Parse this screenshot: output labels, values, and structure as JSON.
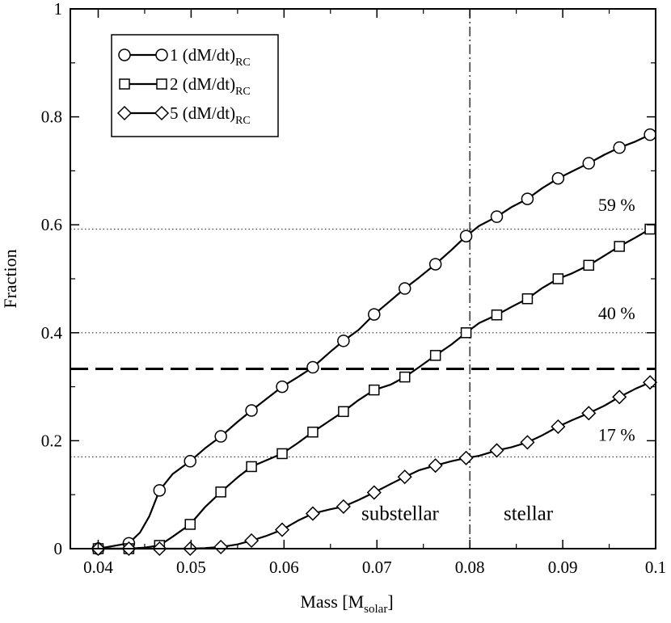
{
  "chart_data": {
    "type": "line",
    "title": "",
    "xlabel": "Mass [M",
    "xlabel_sub": "solar",
    "xlabel_close": "]",
    "ylabel": "Fraction",
    "xlim": [
      0.037,
      0.1
    ],
    "ylim": [
      0,
      1
    ],
    "x_ticks": [
      0.04,
      0.05,
      0.06,
      0.07,
      0.08,
      0.09,
      0.1
    ],
    "x_tick_labels": [
      "0.04",
      "0.05",
      "0.06",
      "0.07",
      "0.08",
      "0.09",
      "0.1"
    ],
    "y_ticks": [
      0,
      0.2,
      0.4,
      0.6,
      0.8,
      1
    ],
    "y_tick_labels": [
      "0",
      "0.2",
      "0.4",
      "0.6",
      "0.8",
      "1"
    ],
    "grid": false,
    "legend_position": "top-left",
    "series": [
      {
        "name": "1 (dM/dt)",
        "name_sub": "RC",
        "marker": "circle",
        "x": [
          0.04,
          0.0433,
          0.0466,
          0.0499,
          0.0532,
          0.0565,
          0.0598,
          0.0631,
          0.0664,
          0.0697,
          0.073,
          0.0763,
          0.0796,
          0.0829,
          0.0862,
          0.0895,
          0.0928,
          0.0961,
          0.0994
        ],
        "y": [
          0,
          0.01,
          0.108,
          0.162,
          0.208,
          0.256,
          0.3,
          0.336,
          0.385,
          0.434,
          0.482,
          0.527,
          0.579,
          0.615,
          0.648,
          0.686,
          0.714,
          0.743,
          0.767
        ],
        "curve_x": [
          0.04,
          0.0433,
          0.0445,
          0.0455,
          0.0466,
          0.048,
          0.0499,
          0.0515,
          0.0532,
          0.055,
          0.0565,
          0.058,
          0.0598,
          0.0615,
          0.0631,
          0.065,
          0.0664,
          0.068,
          0.0697,
          0.0715,
          0.073,
          0.0745,
          0.0763,
          0.078,
          0.0796,
          0.081,
          0.0829,
          0.0845,
          0.0862,
          0.0878,
          0.0895,
          0.091,
          0.0928,
          0.0945,
          0.0961,
          0.0978,
          0.0994
        ],
        "curve_y": [
          0,
          0.01,
          0.03,
          0.06,
          0.108,
          0.138,
          0.162,
          0.186,
          0.208,
          0.235,
          0.256,
          0.276,
          0.3,
          0.318,
          0.336,
          0.365,
          0.385,
          0.405,
          0.434,
          0.46,
          0.482,
          0.502,
          0.527,
          0.553,
          0.579,
          0.598,
          0.615,
          0.633,
          0.648,
          0.668,
          0.686,
          0.699,
          0.714,
          0.73,
          0.743,
          0.754,
          0.767
        ]
      },
      {
        "name": "2 (dM/dt)",
        "name_sub": "RC",
        "marker": "square",
        "x": [
          0.04,
          0.0433,
          0.0466,
          0.0499,
          0.0532,
          0.0565,
          0.0598,
          0.0631,
          0.0664,
          0.0697,
          0.073,
          0.0763,
          0.0796,
          0.0829,
          0.0862,
          0.0895,
          0.0928,
          0.0961,
          0.0994
        ],
        "y": [
          0,
          0,
          0.006,
          0.045,
          0.105,
          0.152,
          0.176,
          0.216,
          0.254,
          0.294,
          0.318,
          0.358,
          0.4,
          0.433,
          0.463,
          0.5,
          0.525,
          0.56,
          0.592
        ],
        "curve_x": [
          0.04,
          0.0433,
          0.045,
          0.0466,
          0.048,
          0.0499,
          0.0515,
          0.0532,
          0.055,
          0.0565,
          0.058,
          0.0598,
          0.0615,
          0.0631,
          0.065,
          0.0664,
          0.068,
          0.0697,
          0.0715,
          0.073,
          0.0745,
          0.0763,
          0.078,
          0.0796,
          0.081,
          0.0829,
          0.0845,
          0.0862,
          0.0878,
          0.0895,
          0.091,
          0.0928,
          0.0945,
          0.0961,
          0.0978,
          0.0994
        ],
        "curve_y": [
          0,
          0,
          0.002,
          0.006,
          0.022,
          0.045,
          0.077,
          0.105,
          0.132,
          0.152,
          0.163,
          0.176,
          0.196,
          0.216,
          0.238,
          0.254,
          0.275,
          0.294,
          0.304,
          0.318,
          0.336,
          0.358,
          0.378,
          0.4,
          0.418,
          0.433,
          0.448,
          0.463,
          0.483,
          0.5,
          0.51,
          0.525,
          0.543,
          0.56,
          0.576,
          0.592
        ]
      },
      {
        "name": "5 (dM/dt)",
        "name_sub": "RC",
        "marker": "diamond",
        "x": [
          0.04,
          0.0433,
          0.0466,
          0.0499,
          0.0532,
          0.0565,
          0.0598,
          0.0631,
          0.0664,
          0.0697,
          0.073,
          0.0763,
          0.0796,
          0.0829,
          0.0862,
          0.0895,
          0.0928,
          0.0961,
          0.0994
        ],
        "y": [
          0,
          0,
          0,
          0,
          0.003,
          0.015,
          0.035,
          0.065,
          0.078,
          0.104,
          0.133,
          0.154,
          0.168,
          0.182,
          0.197,
          0.226,
          0.251,
          0.281,
          0.308
        ],
        "curve_x": [
          0.04,
          0.0433,
          0.0466,
          0.0499,
          0.0515,
          0.0532,
          0.055,
          0.0565,
          0.058,
          0.0598,
          0.0615,
          0.0631,
          0.065,
          0.0664,
          0.068,
          0.0697,
          0.0715,
          0.073,
          0.0745,
          0.0763,
          0.078,
          0.0796,
          0.081,
          0.0829,
          0.0845,
          0.0862,
          0.0878,
          0.0895,
          0.091,
          0.0928,
          0.0945,
          0.0961,
          0.0978,
          0.0994
        ],
        "curve_y": [
          0,
          0,
          0,
          0,
          0.001,
          0.003,
          0.008,
          0.015,
          0.023,
          0.035,
          0.052,
          0.065,
          0.073,
          0.078,
          0.09,
          0.104,
          0.12,
          0.133,
          0.145,
          0.154,
          0.162,
          0.168,
          0.172,
          0.182,
          0.188,
          0.197,
          0.21,
          0.226,
          0.238,
          0.251,
          0.265,
          0.281,
          0.296,
          0.308
        ]
      }
    ],
    "reference_lines": {
      "dotted_y": [
        0.592,
        0.4,
        0.17
      ],
      "dashed_y": [
        0.333
      ],
      "dashdot_x": [
        0.08
      ]
    },
    "annotations": [
      {
        "text": "59 %",
        "x": 0.0958,
        "y": 0.626
      },
      {
        "text": "40 %",
        "x": 0.0958,
        "y": 0.425
      },
      {
        "text": "17 %",
        "x": 0.0958,
        "y": 0.2
      },
      {
        "text": "substellar",
        "x": 0.0725,
        "y": 0.053
      },
      {
        "text": "stellar",
        "x": 0.0863,
        "y": 0.053
      }
    ]
  }
}
